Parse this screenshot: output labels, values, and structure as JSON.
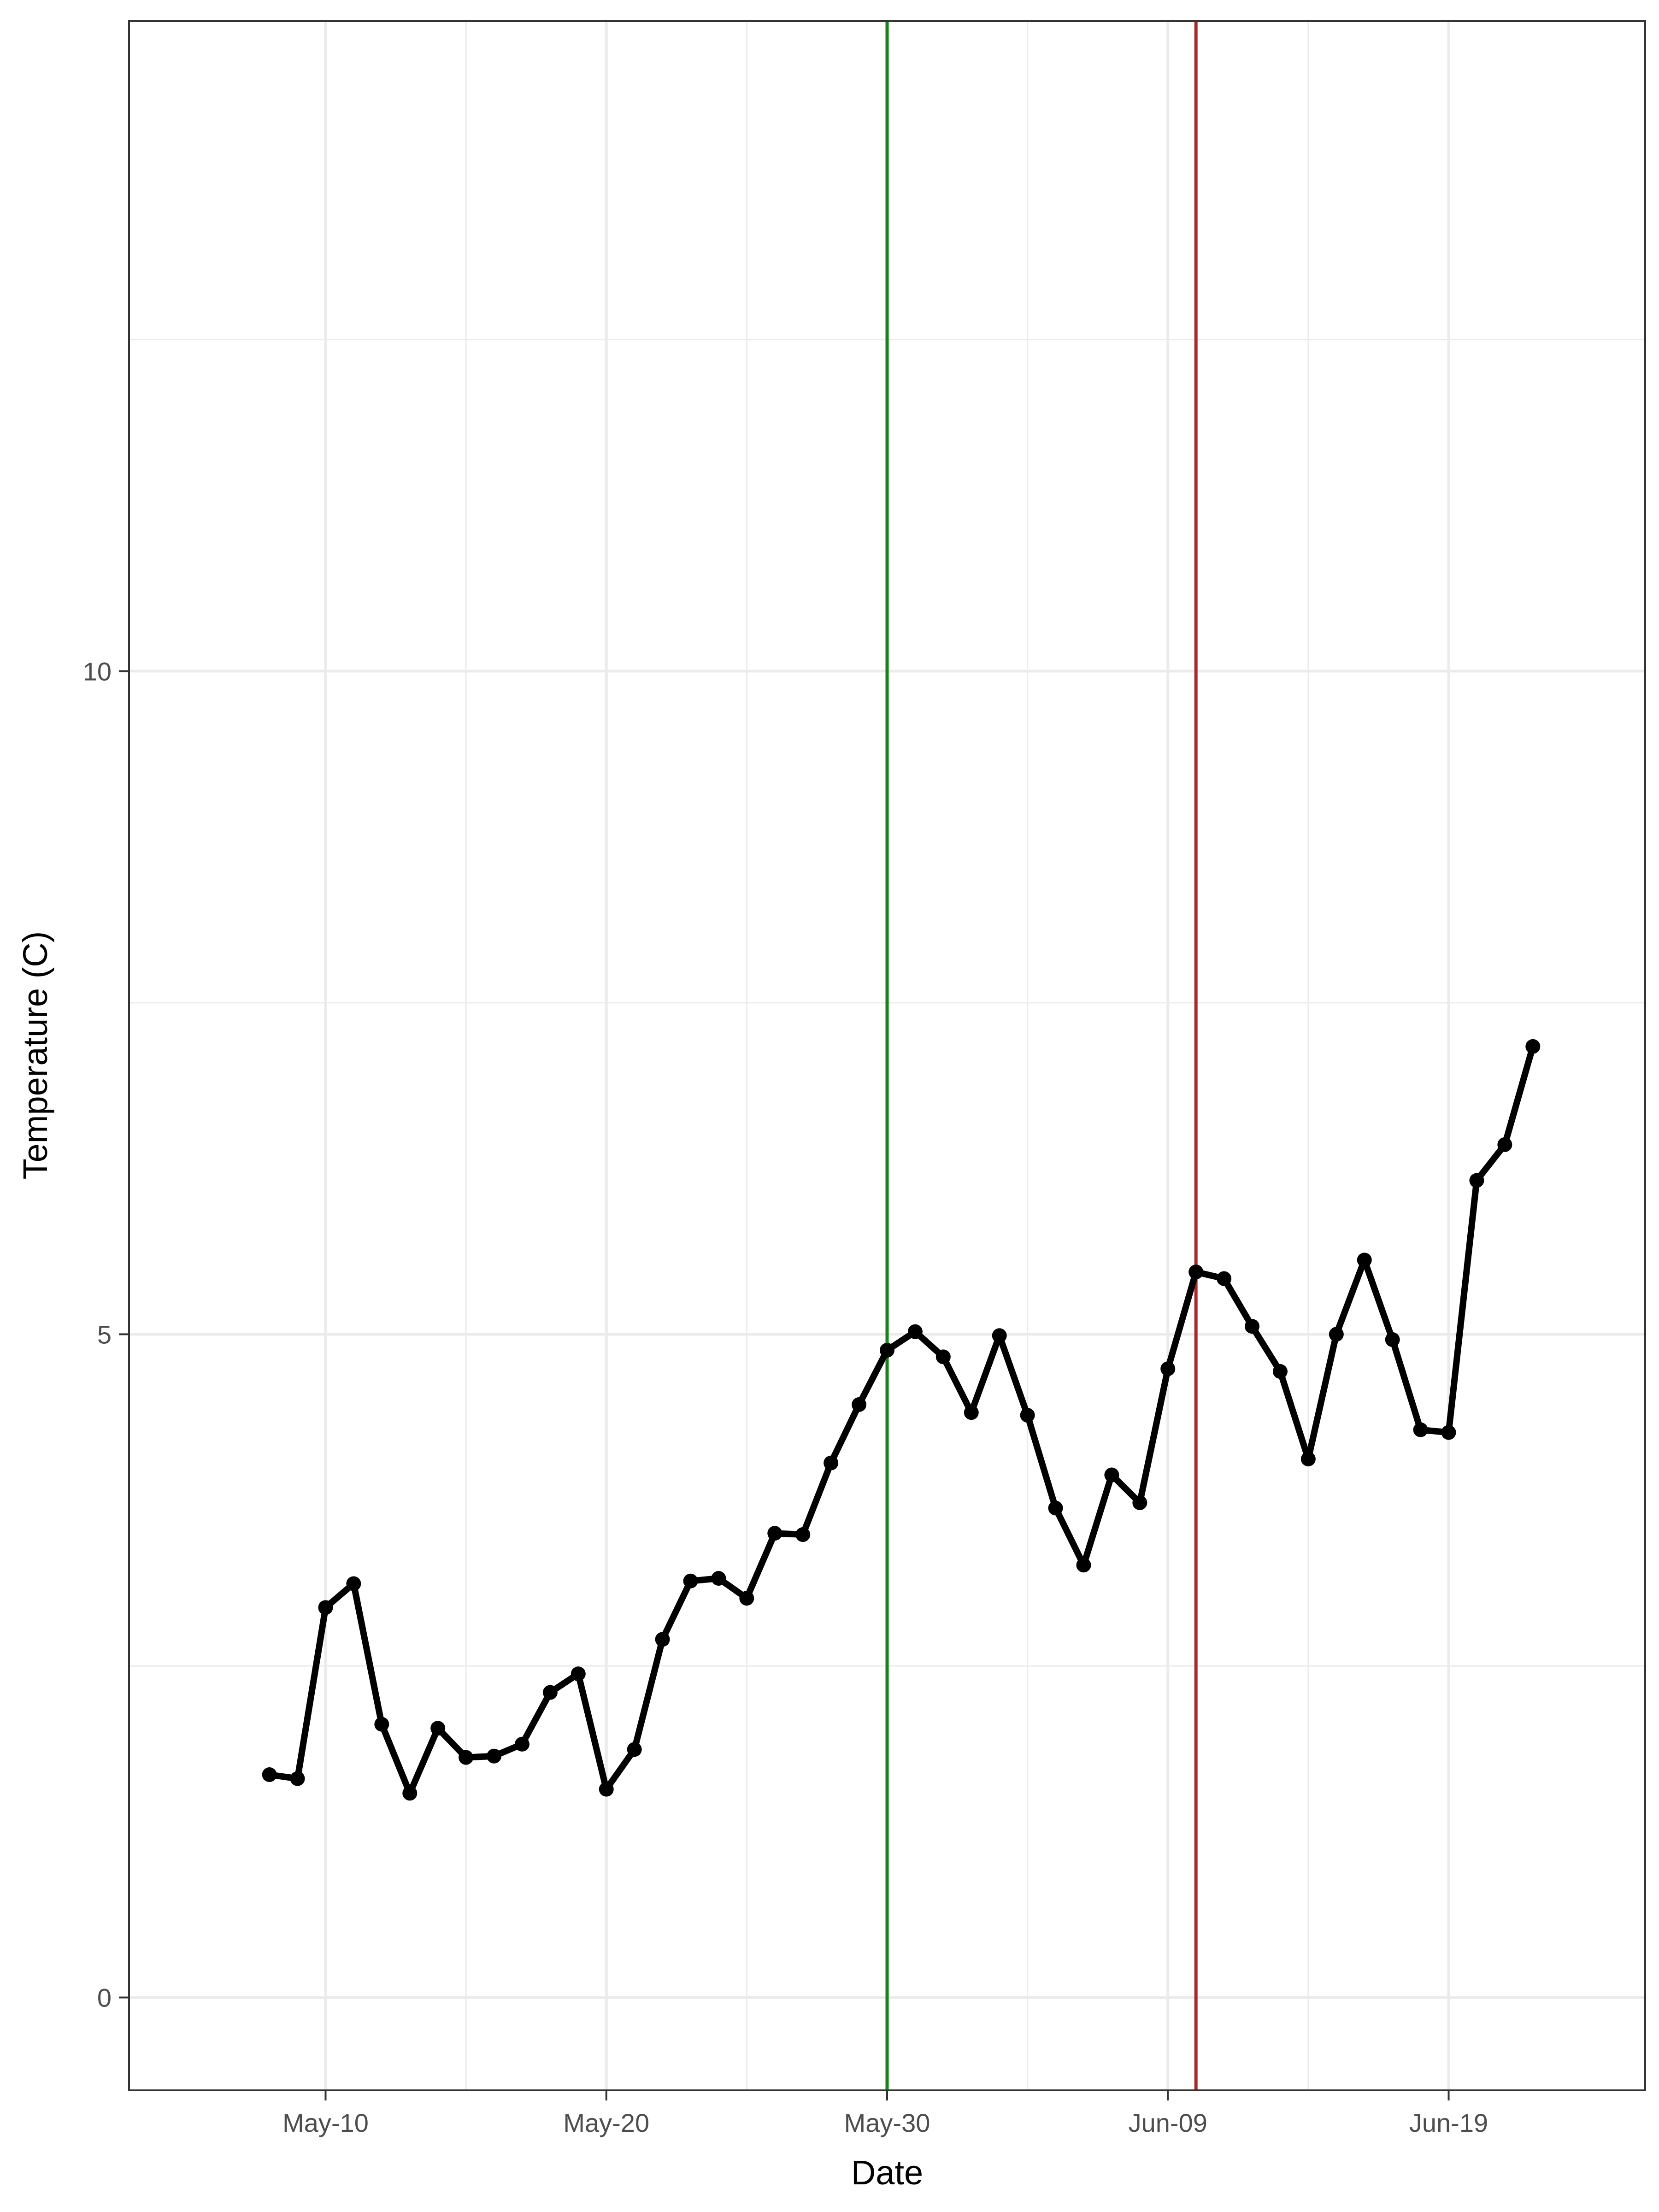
{
  "chart_data": {
    "type": "line",
    "title": "",
    "xlabel": "Date",
    "ylabel": "Temperature (C)",
    "x_axis": {
      "type": "date",
      "range": [
        "2024-05-03",
        "2024-06-26"
      ],
      "ticks": [
        {
          "value": "2024-05-10",
          "label": "May-10"
        },
        {
          "value": "2024-05-20",
          "label": "May-20"
        },
        {
          "value": "2024-05-30",
          "label": "May-30"
        },
        {
          "value": "2024-06-09",
          "label": "Jun-09"
        },
        {
          "value": "2024-06-19",
          "label": "Jun-19"
        }
      ],
      "minor_ticks": [
        "2024-05-15",
        "2024-05-25",
        "2024-06-04",
        "2024-06-14"
      ]
    },
    "y_axis": {
      "range": [
        -0.7,
        14.9
      ],
      "ticks": [
        {
          "value": 0,
          "label": "0"
        },
        {
          "value": 5,
          "label": "5"
        },
        {
          "value": 10,
          "label": "10"
        }
      ],
      "minor_ticks": [
        2.5,
        7.5,
        12.5
      ]
    },
    "grid": true,
    "colors": {
      "series": "#000000",
      "vline_green": "#1a8019",
      "vline_red": "#a52a2a"
    },
    "vlines": [
      {
        "x": "2024-05-30",
        "color": "#1a8019"
      },
      {
        "x": "2024-06-10",
        "color": "#a52a2a"
      }
    ],
    "series": [
      {
        "x": [
          "2024-05-08",
          "2024-05-09",
          "2024-05-10",
          "2024-05-11",
          "2024-05-12",
          "2024-05-13",
          "2024-05-14",
          "2024-05-15",
          "2024-05-16",
          "2024-05-17",
          "2024-05-18",
          "2024-05-19",
          "2024-05-20",
          "2024-05-21",
          "2024-05-22",
          "2024-05-23",
          "2024-05-24",
          "2024-05-25",
          "2024-05-26",
          "2024-05-27",
          "2024-05-28",
          "2024-05-29",
          "2024-05-30",
          "2024-05-31",
          "2024-06-01",
          "2024-06-02",
          "2024-06-03",
          "2024-06-04",
          "2024-06-05",
          "2024-06-06",
          "2024-06-07",
          "2024-06-08",
          "2024-06-09",
          "2024-06-10",
          "2024-06-11",
          "2024-06-12",
          "2024-06-13",
          "2024-06-14",
          "2024-06-15",
          "2024-06-16",
          "2024-06-17",
          "2024-06-18",
          "2024-06-19",
          "2024-06-20",
          "2024-06-21",
          "2024-06-22"
        ],
        "values": [
          1.68,
          1.65,
          2.94,
          3.12,
          2.06,
          1.54,
          2.03,
          1.81,
          1.82,
          1.91,
          2.3,
          2.44,
          1.57,
          1.87,
          2.7,
          3.14,
          3.16,
          3.01,
          3.5,
          3.49,
          4.03,
          4.47,
          4.88,
          5.02,
          4.83,
          4.41,
          4.99,
          4.39,
          3.69,
          3.26,
          3.94,
          3.73,
          4.74,
          5.47,
          5.42,
          5.06,
          4.72,
          4.06,
          5.0,
          5.56,
          4.96,
          4.28,
          4.26,
          6.16,
          6.43,
          7.17
        ]
      }
    ]
  }
}
